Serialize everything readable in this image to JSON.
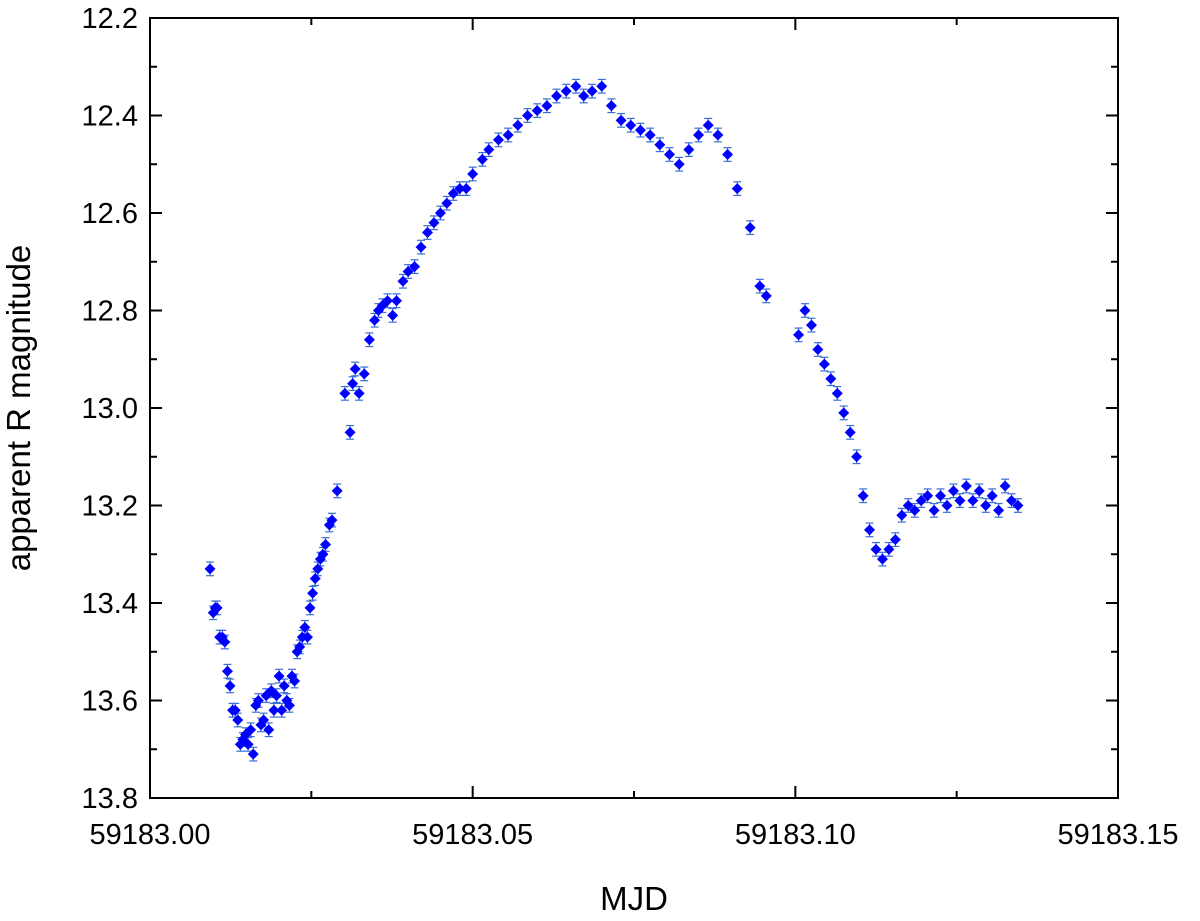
{
  "chart_data": {
    "type": "scatter",
    "title": "",
    "xlabel": "MJD",
    "ylabel": "apparent R magnitude",
    "xlim": [
      59183.0,
      59183.15
    ],
    "ylim": [
      12.2,
      13.8
    ],
    "y_inverted": true,
    "grid": false,
    "legend": "none",
    "marker": "diamond",
    "error_bars": true,
    "x_ticks": [
      "59183.00",
      "59183.05",
      "59183.10",
      "59183.15"
    ],
    "y_ticks": [
      "12.2",
      "12.4",
      "12.6",
      "12.8",
      "13.0",
      "13.2",
      "13.4",
      "13.6",
      "13.8"
    ],
    "colors": {
      "points": "#0000ff",
      "error_bars": "#3b6fd6",
      "axes": "#000000"
    },
    "series": [
      {
        "points": [
          [
            59183.0093,
            13.33
          ],
          [
            59183.0098,
            13.42
          ],
          [
            59183.0101,
            13.41
          ],
          [
            59183.0104,
            13.41
          ],
          [
            59183.0108,
            13.47
          ],
          [
            59183.0112,
            13.47
          ],
          [
            59183.0116,
            13.48
          ],
          [
            59183.012,
            13.54
          ],
          [
            59183.0124,
            13.57
          ],
          [
            59183.0128,
            13.62
          ],
          [
            59183.0132,
            13.62
          ],
          [
            59183.0136,
            13.64
          ],
          [
            59183.014,
            13.69
          ],
          [
            59183.0144,
            13.68
          ],
          [
            59183.0148,
            13.67
          ],
          [
            59183.0152,
            13.69
          ],
          [
            59183.0156,
            13.66
          ],
          [
            59183.016,
            13.71
          ],
          [
            59183.0164,
            13.61
          ],
          [
            59183.0168,
            13.6
          ],
          [
            59183.0172,
            13.65
          ],
          [
            59183.0176,
            13.64
          ],
          [
            59183.018,
            13.59
          ],
          [
            59183.0184,
            13.66
          ],
          [
            59183.0188,
            13.58
          ],
          [
            59183.0192,
            13.62
          ],
          [
            59183.0196,
            13.59
          ],
          [
            59183.02,
            13.55
          ],
          [
            59183.0204,
            13.62
          ],
          [
            59183.0208,
            13.57
          ],
          [
            59183.0212,
            13.6
          ],
          [
            59183.0216,
            13.61
          ],
          [
            59183.022,
            13.55
          ],
          [
            59183.0224,
            13.56
          ],
          [
            59183.0228,
            13.5
          ],
          [
            59183.0232,
            13.49
          ],
          [
            59183.0236,
            13.47
          ],
          [
            59183.024,
            13.45
          ],
          [
            59183.0244,
            13.47
          ],
          [
            59183.0248,
            13.41
          ],
          [
            59183.0252,
            13.38
          ],
          [
            59183.0256,
            13.35
          ],
          [
            59183.026,
            13.33
          ],
          [
            59183.0264,
            13.31
          ],
          [
            59183.0268,
            13.3
          ],
          [
            59183.0272,
            13.28
          ],
          [
            59183.0278,
            13.24
          ],
          [
            59183.0282,
            13.23
          ],
          [
            59183.029,
            13.17
          ],
          [
            59183.0302,
            12.97
          ],
          [
            59183.031,
            13.05
          ],
          [
            59183.0314,
            12.95
          ],
          [
            59183.0318,
            12.92
          ],
          [
            59183.0324,
            12.97
          ],
          [
            59183.0332,
            12.93
          ],
          [
            59183.034,
            12.86
          ],
          [
            59183.0348,
            12.82
          ],
          [
            59183.0354,
            12.8
          ],
          [
            59183.036,
            12.79
          ],
          [
            59183.0368,
            12.78
          ],
          [
            59183.0376,
            12.81
          ],
          [
            59183.0382,
            12.78
          ],
          [
            59183.0392,
            12.74
          ],
          [
            59183.04,
            12.72
          ],
          [
            59183.041,
            12.71
          ],
          [
            59183.042,
            12.67
          ],
          [
            59183.043,
            12.64
          ],
          [
            59183.044,
            12.62
          ],
          [
            59183.045,
            12.6
          ],
          [
            59183.046,
            12.58
          ],
          [
            59183.047,
            12.56
          ],
          [
            59183.048,
            12.55
          ],
          [
            59183.049,
            12.55
          ],
          [
            59183.05,
            12.52
          ],
          [
            59183.0515,
            12.49
          ],
          [
            59183.0525,
            12.47
          ],
          [
            59183.054,
            12.45
          ],
          [
            59183.0555,
            12.44
          ],
          [
            59183.057,
            12.42
          ],
          [
            59183.0585,
            12.4
          ],
          [
            59183.06,
            12.39
          ],
          [
            59183.0615,
            12.38
          ],
          [
            59183.063,
            12.36
          ],
          [
            59183.0645,
            12.35
          ],
          [
            59183.066,
            12.34
          ],
          [
            59183.0672,
            12.36
          ],
          [
            59183.0685,
            12.35
          ],
          [
            59183.07,
            12.34
          ],
          [
            59183.0715,
            12.38
          ],
          [
            59183.073,
            12.41
          ],
          [
            59183.0745,
            12.42
          ],
          [
            59183.076,
            12.43
          ],
          [
            59183.0775,
            12.44
          ],
          [
            59183.079,
            12.46
          ],
          [
            59183.0805,
            12.48
          ],
          [
            59183.082,
            12.5
          ],
          [
            59183.0835,
            12.47
          ],
          [
            59183.085,
            12.44
          ],
          [
            59183.0865,
            12.42
          ],
          [
            59183.088,
            12.44
          ],
          [
            59183.0895,
            12.48
          ],
          [
            59183.091,
            12.55
          ],
          [
            59183.093,
            12.63
          ],
          [
            59183.0945,
            12.75
          ],
          [
            59183.0955,
            12.77
          ],
          [
            59183.1005,
            12.85
          ],
          [
            59183.1015,
            12.8
          ],
          [
            59183.1025,
            12.83
          ],
          [
            59183.1035,
            12.88
          ],
          [
            59183.1045,
            12.91
          ],
          [
            59183.1055,
            12.94
          ],
          [
            59183.1065,
            12.97
          ],
          [
            59183.1075,
            13.01
          ],
          [
            59183.1085,
            13.05
          ],
          [
            59183.1095,
            13.1
          ],
          [
            59183.1105,
            13.18
          ],
          [
            59183.1115,
            13.25
          ],
          [
            59183.1125,
            13.29
          ],
          [
            59183.1135,
            13.31
          ],
          [
            59183.1145,
            13.29
          ],
          [
            59183.1155,
            13.27
          ],
          [
            59183.1165,
            13.22
          ],
          [
            59183.1175,
            13.2
          ],
          [
            59183.1185,
            13.21
          ],
          [
            59183.1195,
            13.19
          ],
          [
            59183.1205,
            13.18
          ],
          [
            59183.1215,
            13.21
          ],
          [
            59183.1225,
            13.18
          ],
          [
            59183.1235,
            13.2
          ],
          [
            59183.1245,
            13.17
          ],
          [
            59183.1255,
            13.19
          ],
          [
            59183.1265,
            13.16
          ],
          [
            59183.1275,
            13.19
          ],
          [
            59183.1285,
            13.17
          ],
          [
            59183.1295,
            13.2
          ],
          [
            59183.1305,
            13.18
          ],
          [
            59183.1315,
            13.21
          ],
          [
            59183.1325,
            13.16
          ],
          [
            59183.1335,
            13.19
          ],
          [
            59183.1345,
            13.2
          ]
        ],
        "error": 0.014
      }
    ]
  }
}
